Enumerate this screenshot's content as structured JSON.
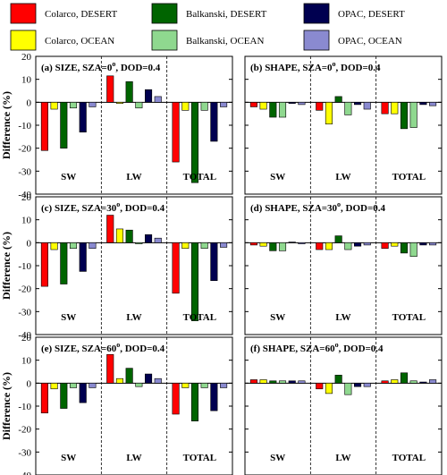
{
  "figure": {
    "ylabel": "Difference (%)",
    "legend": [
      {
        "label": "Colarco, DESERT",
        "color": "#ff0000"
      },
      {
        "label": "Balkanski, DESERT",
        "color": "#006400"
      },
      {
        "label": "OPAC, DESERT",
        "color": "#000050"
      },
      {
        "label": "Colarco, OCEAN",
        "color": "#ffff00"
      },
      {
        "label": "Balkanski, OCEAN",
        "color": "#8fd88f"
      },
      {
        "label": "OPAC, OCEAN",
        "color": "#8a8ad0"
      }
    ]
  },
  "chart_data": [
    {
      "type": "bar",
      "title": "(a) SIZE, SZA=0",
      "title_sup": "o",
      "title_tail": ", DOD=0.4",
      "categories": [
        "SW",
        "LW",
        "TOTAL"
      ],
      "ylim": [
        -40,
        20
      ],
      "yticks": [
        -40,
        -30,
        -20,
        -10,
        0,
        10,
        20
      ],
      "series": [
        {
          "name": "Colarco, DESERT",
          "values": [
            -21,
            11.5,
            -26
          ]
        },
        {
          "name": "Colarco, OCEAN",
          "values": [
            -3,
            -0.5,
            -3.5
          ]
        },
        {
          "name": "Balkanski, DESERT",
          "values": [
            -20,
            9,
            -35
          ]
        },
        {
          "name": "Balkanski, OCEAN",
          "values": [
            -2.5,
            -2.5,
            -3.5
          ]
        },
        {
          "name": "OPAC, DESERT",
          "values": [
            -13,
            5.5,
            -17
          ]
        },
        {
          "name": "OPAC, OCEAN",
          "values": [
            -2,
            2.5,
            -2
          ]
        }
      ]
    },
    {
      "type": "bar",
      "title": "(b) SHAPE, SZA=0",
      "title_sup": "o",
      "title_tail": ", DOD=0.4",
      "categories": [
        "SW",
        "LW",
        "TOTAL"
      ],
      "ylim": [
        -40,
        20
      ],
      "yticks": [
        -40,
        -30,
        -20,
        -10,
        0,
        10,
        20
      ],
      "series": [
        {
          "name": "Colarco, DESERT",
          "values": [
            -2,
            -3.5,
            -5
          ]
        },
        {
          "name": "Colarco, OCEAN",
          "values": [
            -3,
            -9.5,
            -5
          ]
        },
        {
          "name": "Balkanski, DESERT",
          "values": [
            -6.5,
            2.5,
            -11.5
          ]
        },
        {
          "name": "Balkanski, OCEAN",
          "values": [
            -6.5,
            -5.5,
            -11
          ]
        },
        {
          "name": "OPAC, DESERT",
          "values": [
            -0.5,
            -1,
            -1
          ]
        },
        {
          "name": "OPAC, OCEAN",
          "values": [
            -1,
            -3,
            -1.5
          ]
        }
      ]
    },
    {
      "type": "bar",
      "title": "(c) SIZE, SZA=30",
      "title_sup": "o",
      "title_tail": ", DOD=0.4",
      "categories": [
        "SW",
        "LW",
        "TOTAL"
      ],
      "ylim": [
        -40,
        20
      ],
      "yticks": [
        -40,
        -30,
        -20,
        -10,
        0,
        10,
        20
      ],
      "series": [
        {
          "name": "Colarco, DESERT",
          "values": [
            -19,
            12,
            -22
          ]
        },
        {
          "name": "Colarco, OCEAN",
          "values": [
            -3,
            6,
            -2.5
          ]
        },
        {
          "name": "Balkanski, DESERT",
          "values": [
            -18,
            5.5,
            -34
          ]
        },
        {
          "name": "Balkanski, OCEAN",
          "values": [
            -2.5,
            -0.5,
            -2.5
          ]
        },
        {
          "name": "OPAC, DESERT",
          "values": [
            -12.5,
            3.5,
            -16.5
          ]
        },
        {
          "name": "OPAC, OCEAN",
          "values": [
            -2.5,
            2,
            -2
          ]
        }
      ]
    },
    {
      "type": "bar",
      "title": "(d) SHAPE, SZA=30",
      "title_sup": "o",
      "title_tail": ", DOD=0.4",
      "categories": [
        "SW",
        "LW",
        "TOTAL"
      ],
      "ylim": [
        -40,
        20
      ],
      "yticks": [
        -40,
        -30,
        -20,
        -10,
        0,
        10,
        20
      ],
      "series": [
        {
          "name": "Colarco, DESERT",
          "values": [
            -1,
            -3,
            -2.5
          ]
        },
        {
          "name": "Colarco, OCEAN",
          "values": [
            -1.5,
            -3,
            -1.5
          ]
        },
        {
          "name": "Balkanski, DESERT",
          "values": [
            -3.5,
            3,
            -4.5
          ]
        },
        {
          "name": "Balkanski, OCEAN",
          "values": [
            -3.5,
            -3,
            -6
          ]
        },
        {
          "name": "OPAC, DESERT",
          "values": [
            0.3,
            -1.5,
            -1
          ]
        },
        {
          "name": "OPAC, OCEAN",
          "values": [
            -0.5,
            -1,
            -1
          ]
        }
      ]
    },
    {
      "type": "bar",
      "title": "(e) SIZE, SZA=60",
      "title_sup": "o",
      "title_tail": ", DOD=0.4",
      "categories": [
        "SW",
        "LW",
        "TOTAL"
      ],
      "ylim": [
        -40,
        20
      ],
      "yticks": [
        -40,
        -30,
        -20,
        -10,
        0,
        10,
        20
      ],
      "series": [
        {
          "name": "Colarco, DESERT",
          "values": [
            -13,
            12.5,
            -13.5
          ]
        },
        {
          "name": "Colarco, OCEAN",
          "values": [
            -2.5,
            2,
            -2
          ]
        },
        {
          "name": "Balkanski, DESERT",
          "values": [
            -11,
            6.5,
            -16.5
          ]
        },
        {
          "name": "Balkanski, OCEAN",
          "values": [
            -2,
            -1.5,
            -2
          ]
        },
        {
          "name": "OPAC, DESERT",
          "values": [
            -8.5,
            4,
            -12
          ]
        },
        {
          "name": "OPAC, OCEAN",
          "values": [
            -2,
            2,
            -2
          ]
        }
      ]
    },
    {
      "type": "bar",
      "title": "(f) SHAPE, SZA=60",
      "title_sup": "o",
      "title_tail": ", DOD=0.4",
      "categories": [
        "SW",
        "LW",
        "TOTAL"
      ],
      "ylim": [
        -40,
        20
      ],
      "yticks": [
        -40,
        -30,
        -20,
        -10,
        0,
        10,
        20
      ],
      "series": [
        {
          "name": "Colarco, DESERT",
          "values": [
            1.5,
            -2.5,
            1
          ]
        },
        {
          "name": "Colarco, OCEAN",
          "values": [
            1.5,
            -4.5,
            1.5
          ]
        },
        {
          "name": "Balkanski, DESERT",
          "values": [
            1,
            3.5,
            4.5
          ]
        },
        {
          "name": "Balkanski, OCEAN",
          "values": [
            1,
            -5,
            1
          ]
        },
        {
          "name": "OPAC, DESERT",
          "values": [
            1,
            -1.5,
            0.5
          ]
        },
        {
          "name": "OPAC, OCEAN",
          "values": [
            1,
            -1.5,
            1.5
          ]
        }
      ]
    }
  ]
}
